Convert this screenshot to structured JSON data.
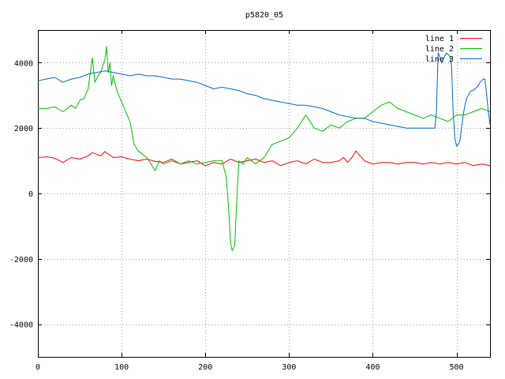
{
  "chart_data": {
    "type": "line",
    "title": "p5820_05",
    "xlabel": "",
    "ylabel": "",
    "xlim": [
      0,
      540
    ],
    "ylim": [
      -5000,
      5000
    ],
    "xticks": [
      0,
      100,
      200,
      300,
      400,
      500
    ],
    "yticks": [
      -4000,
      -2000,
      0,
      2000,
      4000
    ],
    "grid": true,
    "legend_position": "top-right",
    "series": [
      {
        "name": "line 1",
        "color": "#ff0000",
        "x": [
          0,
          10,
          20,
          30,
          40,
          50,
          60,
          65,
          70,
          75,
          80,
          90,
          100,
          110,
          120,
          130,
          140,
          150,
          160,
          170,
          180,
          190,
          200,
          210,
          220,
          230,
          240,
          250,
          260,
          270,
          280,
          290,
          300,
          310,
          320,
          330,
          340,
          350,
          360,
          365,
          370,
          375,
          380,
          385,
          390,
          400,
          410,
          420,
          430,
          440,
          450,
          460,
          470,
          480,
          490,
          500,
          510,
          520,
          530,
          540
        ],
        "y": [
          1100,
          1120,
          1080,
          950,
          1100,
          1050,
          1150,
          1250,
          1200,
          1150,
          1280,
          1100,
          1120,
          1050,
          1000,
          1050,
          980,
          950,
          1050,
          900,
          950,
          1000,
          850,
          950,
          900,
          1050,
          950,
          1000,
          1050,
          950,
          1000,
          850,
          950,
          1000,
          900,
          1050,
          950,
          950,
          1000,
          1100,
          950,
          1100,
          1300,
          1150,
          1000,
          900,
          950,
          950,
          900,
          950,
          950,
          900,
          950,
          900,
          950,
          900,
          950,
          850,
          900,
          850
        ]
      },
      {
        "name": "line 2",
        "color": "#00c000",
        "x": [
          0,
          10,
          20,
          30,
          40,
          45,
          50,
          55,
          60,
          65,
          68,
          72,
          75,
          80,
          82,
          84,
          86,
          88,
          90,
          95,
          100,
          110,
          115,
          120,
          125,
          130,
          135,
          140,
          145,
          150,
          160,
          170,
          180,
          190,
          200,
          210,
          220,
          225,
          228,
          230,
          232,
          235,
          238,
          240,
          245,
          250,
          260,
          270,
          280,
          290,
          300,
          310,
          320,
          330,
          340,
          350,
          360,
          370,
          380,
          390,
          400,
          410,
          420,
          430,
          440,
          450,
          460,
          470,
          480,
          490,
          500,
          510,
          520,
          530,
          540
        ],
        "y": [
          2600,
          2600,
          2650,
          2500,
          2700,
          2600,
          2850,
          2900,
          3200,
          4150,
          3400,
          3600,
          3700,
          4100,
          4500,
          3700,
          4000,
          3300,
          3600,
          3100,
          2800,
          2200,
          1500,
          1300,
          1200,
          1100,
          900,
          700,
          1000,
          900,
          1000,
          900,
          1000,
          900,
          950,
          1000,
          1000,
          500,
          -500,
          -1500,
          -1750,
          -1600,
          0,
          1000,
          900,
          1100,
          900,
          1100,
          1500,
          1600,
          1700,
          2000,
          2400,
          2000,
          1900,
          2100,
          2000,
          2200,
          2300,
          2300,
          2500,
          2700,
          2800,
          2600,
          2500,
          2400,
          2300,
          2400,
          2300,
          2200,
          2400,
          2400,
          2500,
          2600,
          2500
        ]
      },
      {
        "name": "line 3",
        "color": "#0066cc",
        "x": [
          0,
          10,
          20,
          30,
          40,
          50,
          60,
          70,
          80,
          90,
          100,
          110,
          120,
          130,
          140,
          150,
          160,
          170,
          180,
          190,
          200,
          210,
          220,
          230,
          240,
          250,
          260,
          270,
          280,
          290,
          300,
          310,
          320,
          330,
          340,
          350,
          360,
          370,
          380,
          390,
          400,
          410,
          420,
          430,
          440,
          450,
          460,
          470,
          474,
          476,
          478,
          480,
          482,
          484,
          486,
          488,
          490,
          492,
          494,
          496,
          498,
          500,
          502,
          504,
          506,
          508,
          510,
          512,
          514,
          516,
          518,
          520,
          522,
          524,
          526,
          528,
          530,
          532,
          534,
          536,
          538,
          540
        ],
        "y": [
          3450,
          3500,
          3550,
          3400,
          3500,
          3550,
          3650,
          3700,
          3750,
          3700,
          3650,
          3600,
          3650,
          3600,
          3600,
          3550,
          3500,
          3500,
          3450,
          3400,
          3300,
          3200,
          3250,
          3200,
          3150,
          3050,
          3000,
          2900,
          2850,
          2800,
          2750,
          2700,
          2700,
          2650,
          2600,
          2500,
          2400,
          2350,
          2300,
          2300,
          2200,
          2150,
          2100,
          2050,
          2000,
          2000,
          2000,
          2000,
          2000,
          2500,
          4300,
          4200,
          4000,
          4100,
          4200,
          4300,
          4250,
          4200,
          3900,
          2500,
          1700,
          1450,
          1500,
          1600,
          2000,
          2400,
          2700,
          2900,
          3000,
          3100,
          3150,
          3150,
          3200,
          3250,
          3300,
          3400,
          3450,
          3500,
          3500,
          3000,
          2500,
          2100
        ]
      }
    ]
  }
}
